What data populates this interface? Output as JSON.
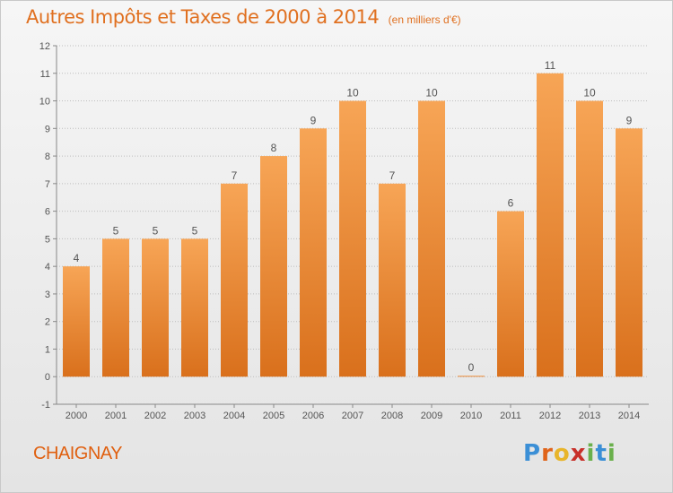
{
  "header": {
    "title": "Autres Impôts et Taxes de 2000 à 2014",
    "unit_note": "(en milliers d'€)"
  },
  "footer": {
    "town": "CHAIGNAY",
    "brand_letters": [
      "P",
      "r",
      "o",
      "x",
      "i",
      "t",
      "i"
    ],
    "brand_colors": [
      "#3b8fd6",
      "#e0641a",
      "#e8b52a",
      "#c8302a",
      "#6ab04c",
      "#3b8fd6",
      "#6ab04c"
    ]
  },
  "colors": {
    "bar_top": "#f7a556",
    "bar_bottom": "#d9701c",
    "grid": "#bdbdbd",
    "text": "#555555"
  },
  "chart_data": {
    "type": "bar",
    "title": "Autres Impôts et Taxes de 2000 à 2014",
    "subtitle": "(en milliers d'€)",
    "categories": [
      "2000",
      "2001",
      "2002",
      "2003",
      "2004",
      "2005",
      "2006",
      "2007",
      "2008",
      "2009",
      "2010",
      "2011",
      "2012",
      "2013",
      "2014"
    ],
    "values": [
      4,
      5,
      5,
      5,
      7,
      8,
      9,
      10,
      7,
      10,
      0,
      6,
      11,
      10,
      9
    ],
    "value_labels": [
      "4",
      "5",
      "5",
      "5",
      "7",
      "8",
      "9",
      "10",
      "7",
      "10",
      "0",
      "6",
      "11",
      "10",
      "9"
    ],
    "yticks": [
      "-1",
      "0",
      "1",
      "2",
      "3",
      "4",
      "5",
      "6",
      "7",
      "8",
      "9",
      "10",
      "11",
      "12"
    ],
    "ylim": [
      -1,
      12
    ],
    "grid": true,
    "legend": "none"
  }
}
